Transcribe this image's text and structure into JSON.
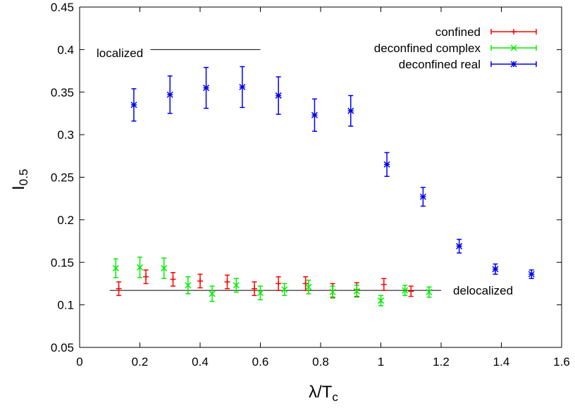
{
  "chart_data": {
    "type": "scatter",
    "xlabel": "λ/T",
    "xlabel_sub": "c",
    "ylabel": "I",
    "ylabel_sub": "0.5",
    "xlim": [
      0,
      1.6
    ],
    "ylim": [
      0.05,
      0.45
    ],
    "x_ticks": [
      0,
      0.2,
      0.4,
      0.6,
      0.8,
      1,
      1.2,
      1.4,
      1.6
    ],
    "x_tick_labels": [
      "0",
      "0.2",
      "0.4",
      "0.6",
      "0.8",
      "1",
      "1.2",
      "1.4",
      "1.6"
    ],
    "y_ticks": [
      0.05,
      0.1,
      0.15,
      0.2,
      0.25,
      0.3,
      0.35,
      0.4,
      0.45
    ],
    "y_tick_labels": [
      "0.05",
      "0.1",
      "0.15",
      "0.2",
      "0.25",
      "0.3",
      "0.35",
      "0.4",
      "0.45"
    ],
    "grid": false,
    "legend_position": "top-right",
    "series": [
      {
        "name": "confined",
        "color": "#ff0000",
        "marker": "plus",
        "points": [
          {
            "x": 0.13,
            "y": 0.119,
            "err": 0.008
          },
          {
            "x": 0.22,
            "y": 0.133,
            "err": 0.008
          },
          {
            "x": 0.31,
            "y": 0.13,
            "err": 0.008
          },
          {
            "x": 0.4,
            "y": 0.128,
            "err": 0.008
          },
          {
            "x": 0.49,
            "y": 0.127,
            "err": 0.008
          },
          {
            "x": 0.58,
            "y": 0.119,
            "err": 0.008
          },
          {
            "x": 0.66,
            "y": 0.125,
            "err": 0.008
          },
          {
            "x": 0.75,
            "y": 0.125,
            "err": 0.008
          },
          {
            "x": 0.84,
            "y": 0.117,
            "err": 0.008
          },
          {
            "x": 0.92,
            "y": 0.118,
            "err": 0.008
          },
          {
            "x": 1.01,
            "y": 0.124,
            "err": 0.007
          },
          {
            "x": 1.1,
            "y": 0.116,
            "err": 0.006
          }
        ]
      },
      {
        "name": "deconfined complex",
        "color": "#00ee00",
        "marker": "cross",
        "points": [
          {
            "x": 0.12,
            "y": 0.143,
            "err": 0.011
          },
          {
            "x": 0.2,
            "y": 0.144,
            "err": 0.012
          },
          {
            "x": 0.28,
            "y": 0.143,
            "err": 0.012
          },
          {
            "x": 0.36,
            "y": 0.123,
            "err": 0.01
          },
          {
            "x": 0.44,
            "y": 0.113,
            "err": 0.009
          },
          {
            "x": 0.52,
            "y": 0.123,
            "err": 0.008
          },
          {
            "x": 0.6,
            "y": 0.114,
            "err": 0.008
          },
          {
            "x": 0.68,
            "y": 0.118,
            "err": 0.007
          },
          {
            "x": 0.76,
            "y": 0.121,
            "err": 0.008
          },
          {
            "x": 0.84,
            "y": 0.115,
            "err": 0.007
          },
          {
            "x": 0.92,
            "y": 0.116,
            "err": 0.007
          },
          {
            "x": 1.0,
            "y": 0.105,
            "err": 0.006
          },
          {
            "x": 1.08,
            "y": 0.117,
            "err": 0.006
          },
          {
            "x": 1.16,
            "y": 0.115,
            "err": 0.006
          }
        ]
      },
      {
        "name": "deconfined real",
        "color": "#0000ee",
        "marker": "star",
        "points": [
          {
            "x": 0.18,
            "y": 0.335,
            "err": 0.019
          },
          {
            "x": 0.3,
            "y": 0.347,
            "err": 0.022
          },
          {
            "x": 0.42,
            "y": 0.355,
            "err": 0.024
          },
          {
            "x": 0.54,
            "y": 0.356,
            "err": 0.024
          },
          {
            "x": 0.66,
            "y": 0.346,
            "err": 0.022
          },
          {
            "x": 0.78,
            "y": 0.323,
            "err": 0.019
          },
          {
            "x": 0.9,
            "y": 0.328,
            "err": 0.018
          },
          {
            "x": 1.02,
            "y": 0.265,
            "err": 0.014
          },
          {
            "x": 1.14,
            "y": 0.227,
            "err": 0.011
          },
          {
            "x": 1.26,
            "y": 0.169,
            "err": 0.008
          },
          {
            "x": 1.38,
            "y": 0.142,
            "err": 0.006
          },
          {
            "x": 1.5,
            "y": 0.136,
            "err": 0.005
          }
        ]
      }
    ],
    "reference_lines": [
      {
        "label": "localized",
        "x_from": 0.235,
        "x_to": 0.6,
        "y": 0.4
      },
      {
        "label": "delocalized",
        "x_from": 0.1,
        "x_to": 1.2,
        "y": 0.117
      }
    ]
  }
}
